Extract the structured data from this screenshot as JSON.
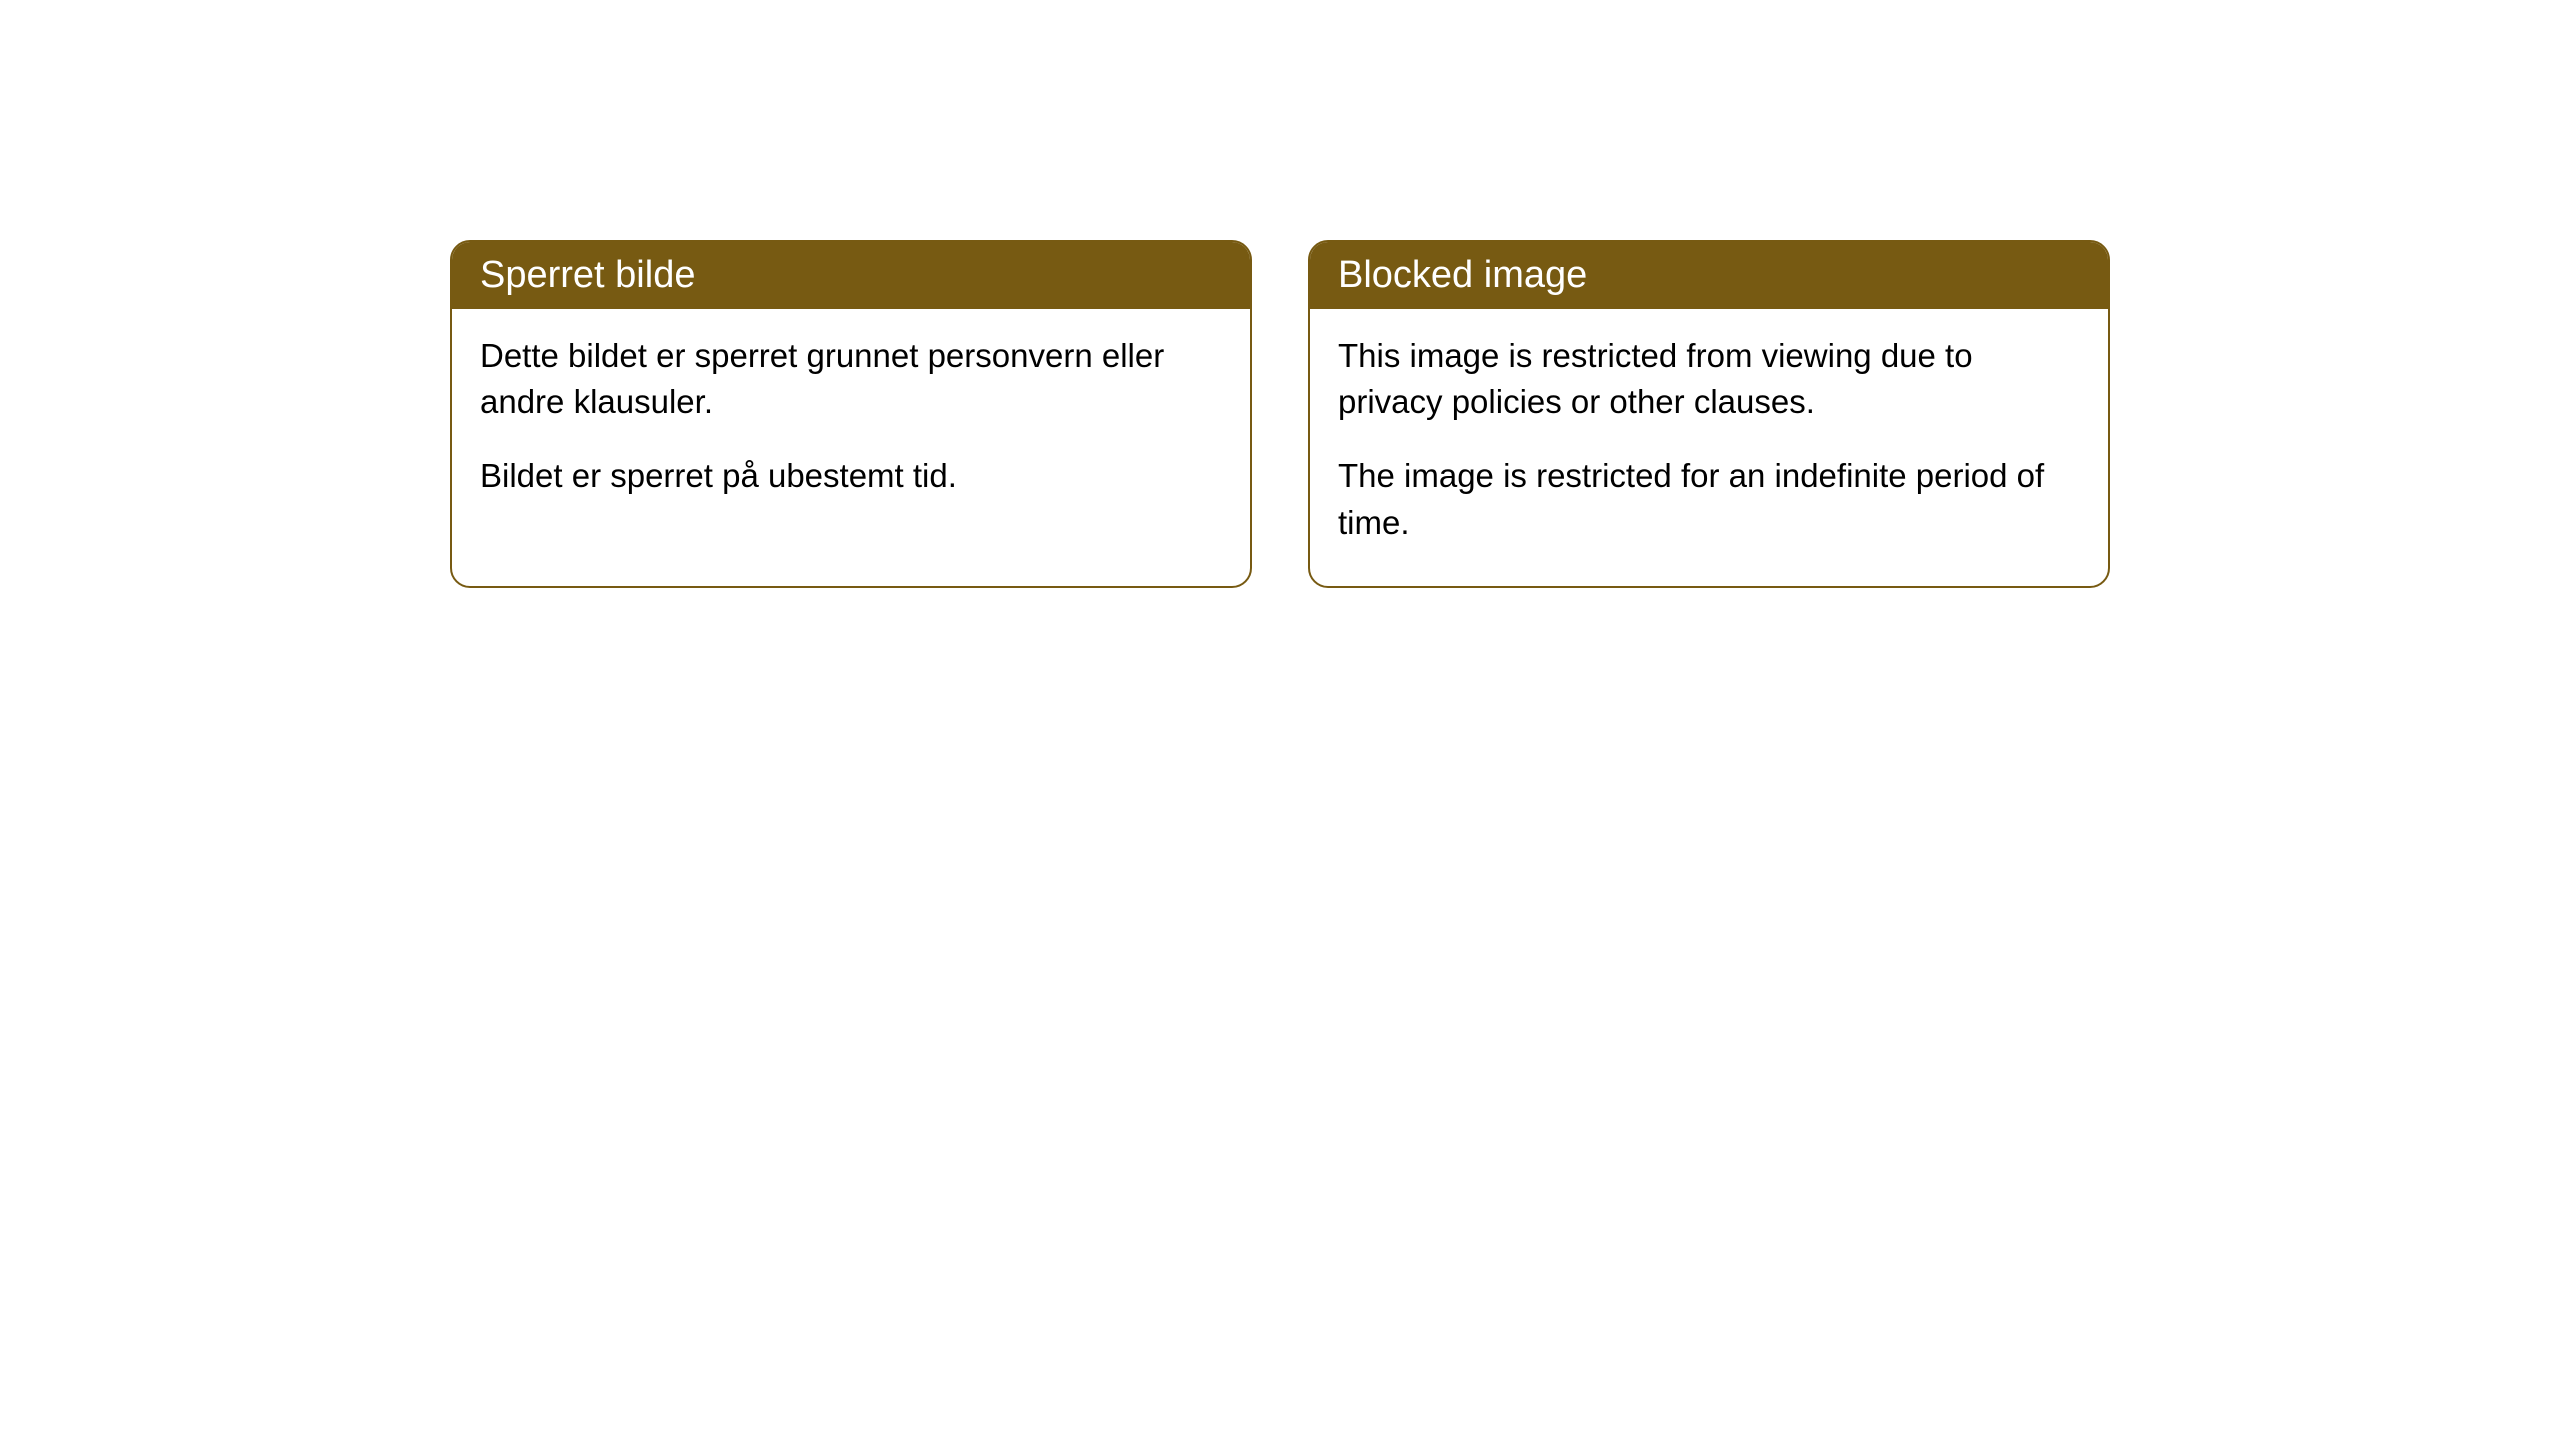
{
  "cards": {
    "norwegian": {
      "title": "Sperret bilde",
      "paragraph1": "Dette bildet er sperret grunnet personvern eller andre klausuler.",
      "paragraph2": "Bildet er sperret på ubestemt tid."
    },
    "english": {
      "title": "Blocked image",
      "paragraph1": "This image is restricted from viewing due to privacy policies or other clauses.",
      "paragraph2": "The image is restricted for an indefinite period of time."
    }
  },
  "style": {
    "header_bg_color": "#775a12",
    "header_text_color": "#ffffff",
    "border_color": "#775a12",
    "body_text_color": "#000000",
    "background_color": "#ffffff",
    "border_radius": 20,
    "title_fontsize": 38,
    "body_fontsize": 33
  }
}
